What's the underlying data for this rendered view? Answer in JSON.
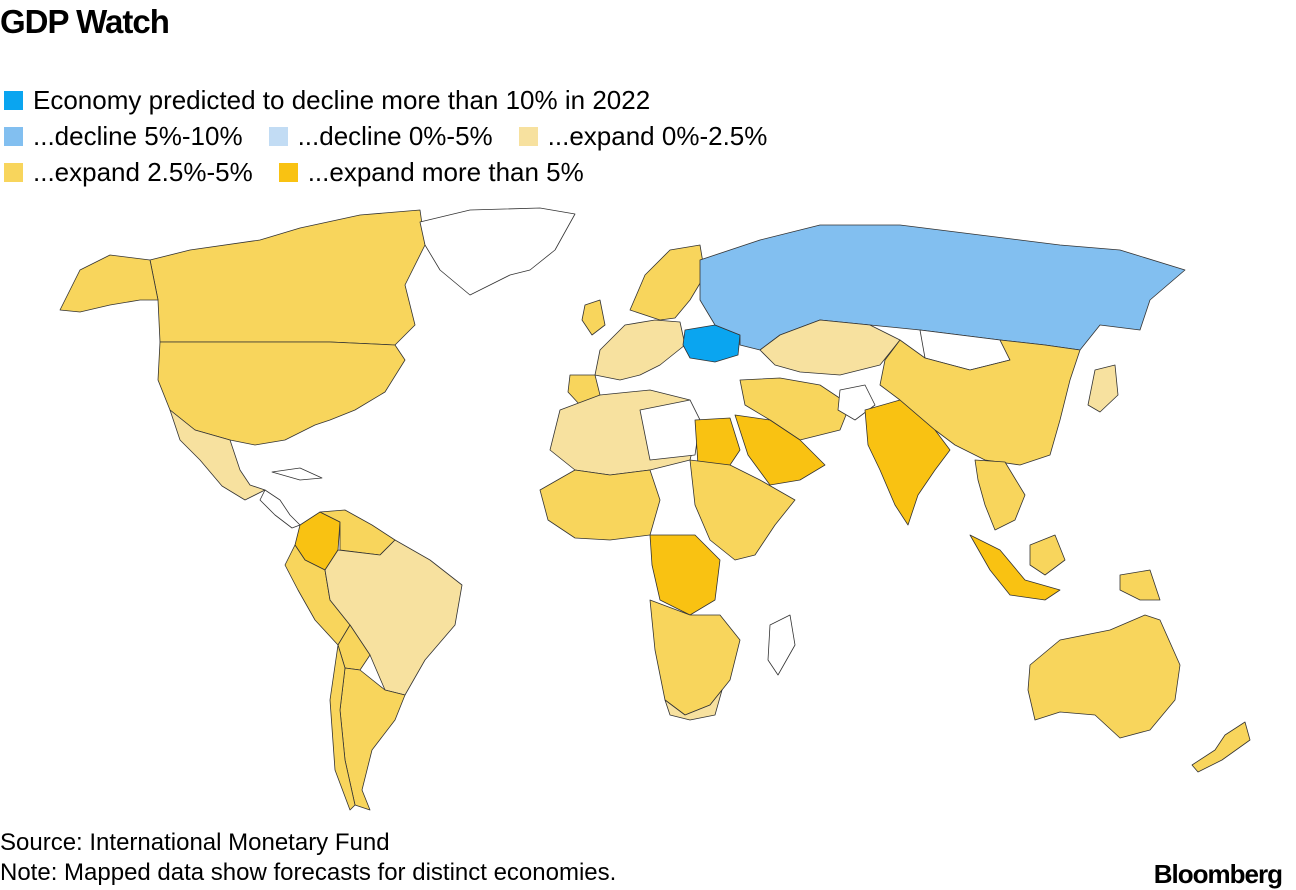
{
  "title": "GDP Watch",
  "legend": [
    {
      "label": "Economy predicted to decline more than 10% in 2022",
      "color": "#0aa5f0"
    },
    {
      "label": "...decline 5%-10%",
      "color": "#82bff0"
    },
    {
      "label": "...decline 0%-5%",
      "color": "#c2dcf4"
    },
    {
      "label": "...expand 0%-2.5%",
      "color": "#f7e19f"
    },
    {
      "label": "...expand 2.5%-5%",
      "color": "#f8d55c"
    },
    {
      "label": "...expand more than 5%",
      "color": "#f9c212"
    }
  ],
  "no_data_color": "#ffffff",
  "regions": {
    "ukraine": "more than 10% decline",
    "russia": "decline 5%-10%",
    "india": "expand more than 5%",
    "china": "expand 2.5%-5%",
    "united_states": "expand 2.5%-5%",
    "brazil": "expand 0%-2.5%",
    "mexico": "expand 0%-2.5%",
    "australia": "expand 2.5%-5%"
  },
  "footer": {
    "source": "Source: International Monetary Fund",
    "note": "Note: Mapped data show forecasts for distinct economies.",
    "brand": "Bloomberg"
  }
}
